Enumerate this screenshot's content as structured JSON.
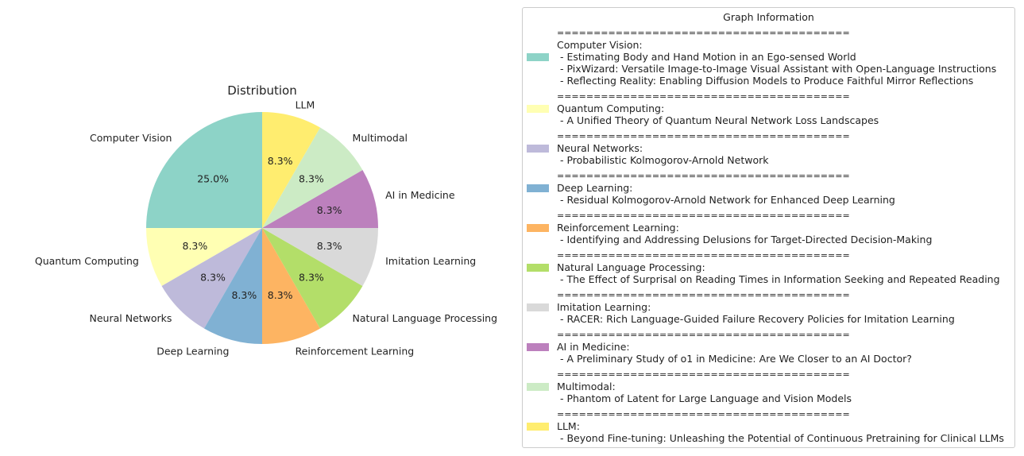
{
  "chart_data": {
    "type": "pie",
    "title": "Distribution",
    "categories": [
      "Computer Vision",
      "Quantum Computing",
      "Neural Networks",
      "Deep Learning",
      "Reinforcement Learning",
      "Natural Language Processing",
      "Imitation Learning",
      "AI in Medicine",
      "Multimodal",
      "LLM"
    ],
    "values": [
      3,
      1,
      1,
      1,
      1,
      1,
      1,
      1,
      1,
      1
    ],
    "percent_labels": [
      "25.0%",
      "8.3%",
      "8.3%",
      "8.3%",
      "8.3%",
      "8.3%",
      "8.3%",
      "8.3%",
      "8.3%",
      "8.3%"
    ],
    "colors": [
      "#8dd3c7",
      "#ffffb3",
      "#bebada",
      "#80b1d3",
      "#fdb462",
      "#b3de69",
      "#d9d9d9",
      "#bc80bd",
      "#ccebc5",
      "#ffed6f"
    ],
    "start_angle_deg": 90,
    "direction": "counterclockwise"
  },
  "legend": {
    "title": "Graph Information",
    "separator": "========================================",
    "entries": [
      {
        "category": "Computer Vision:",
        "papers": [
          "- Estimating Body and Hand Motion in an Ego-sensed World",
          "- PixWizard: Versatile Image-to-Image Visual Assistant with Open-Language Instructions",
          "- Reflecting Reality: Enabling Diffusion Models to Produce Faithful Mirror Reflections"
        ]
      },
      {
        "category": "Quantum Computing:",
        "papers": [
          "- A Unified Theory of Quantum Neural Network Loss Landscapes"
        ]
      },
      {
        "category": "Neural Networks:",
        "papers": [
          "- Probabilistic Kolmogorov-Arnold Network"
        ]
      },
      {
        "category": "Deep Learning:",
        "papers": [
          "- Residual Kolmogorov-Arnold Network for Enhanced Deep Learning"
        ]
      },
      {
        "category": "Reinforcement Learning:",
        "papers": [
          "- Identifying and Addressing Delusions for Target-Directed Decision-Making"
        ]
      },
      {
        "category": "Natural Language Processing:",
        "papers": [
          "- The Effect of Surprisal on Reading Times in Information Seeking and Repeated Reading"
        ]
      },
      {
        "category": "Imitation Learning:",
        "papers": [
          "- RACER: Rich Language-Guided Failure Recovery Policies for Imitation Learning"
        ]
      },
      {
        "category": "AI in Medicine:",
        "papers": [
          "- A Preliminary Study of o1 in Medicine: Are We Closer to an AI Doctor?"
        ]
      },
      {
        "category": "Multimodal:",
        "papers": [
          "- Phantom of Latent for Large Language and Vision Models"
        ]
      },
      {
        "category": "LLM:",
        "papers": [
          "- Beyond Fine-tuning: Unleashing the Potential of Continuous Pretraining for Clinical LLMs"
        ]
      }
    ]
  }
}
